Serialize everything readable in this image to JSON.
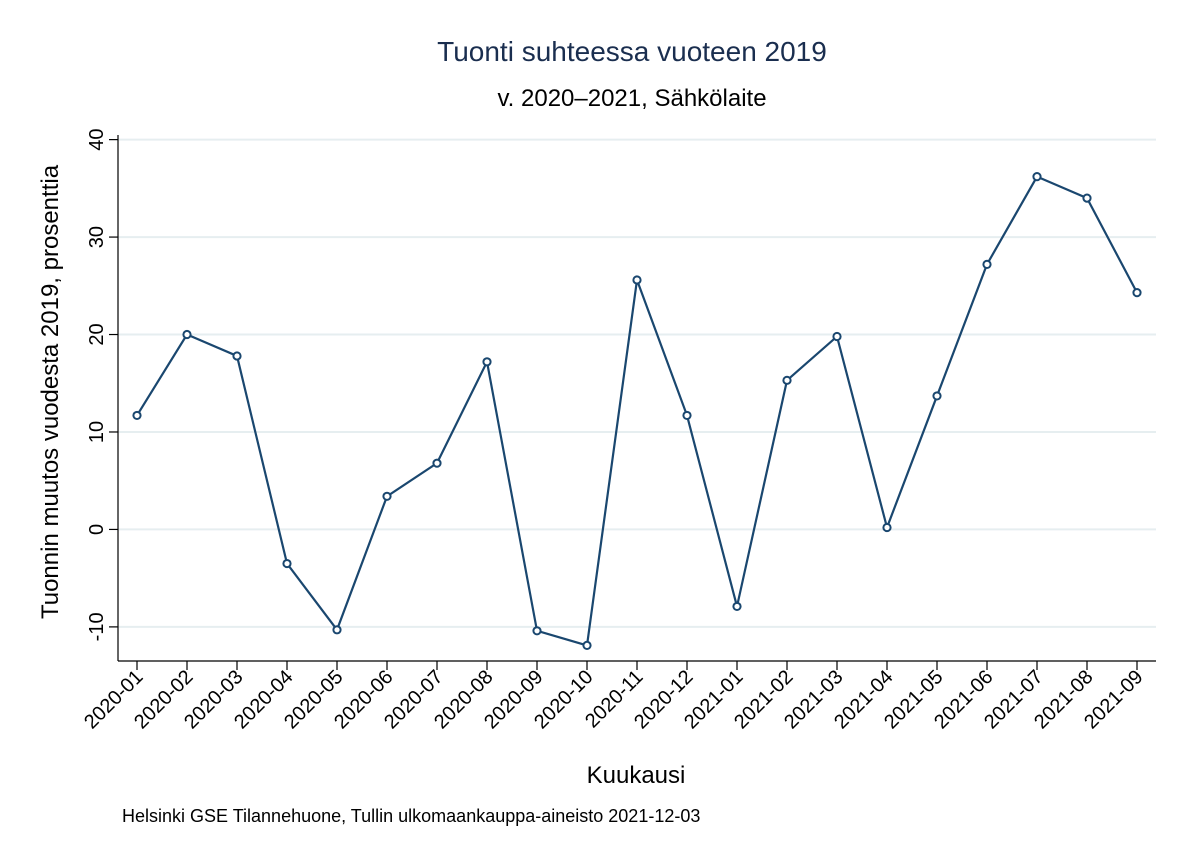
{
  "chart_data": {
    "type": "line",
    "title": "Tuonti suhteessa vuoteen 2019",
    "subtitle": "v. 2020–2021, Sähkölaite",
    "xlabel": "Kuukausi",
    "ylabel": "Tuonnin muutos vuodesta 2019, prosenttia",
    "note": "Helsinki GSE Tilannehuone, Tullin ulkomaankauppa-aineisto 2021-12-03",
    "categories": [
      "2020-01",
      "2020-02",
      "2020-03",
      "2020-04",
      "2020-05",
      "2020-06",
      "2020-07",
      "2020-08",
      "2020-09",
      "2020-10",
      "2020-11",
      "2020-12",
      "2021-01",
      "2021-02",
      "2021-03",
      "2021-04",
      "2021-05",
      "2021-06",
      "2021-07",
      "2021-08",
      "2021-09"
    ],
    "series": [
      {
        "values": [
          11.7,
          20.0,
          17.8,
          -3.5,
          -10.3,
          3.4,
          6.8,
          17.2,
          -10.4,
          -11.9,
          25.6,
          11.7,
          -7.9,
          15.3,
          19.8,
          0.2,
          13.7,
          27.2,
          36.2,
          34.0,
          24.3
        ]
      }
    ],
    "yticks": [
      -10,
      0,
      10,
      20,
      30,
      40
    ],
    "ylim": [
      -13.5,
      41.5
    ],
    "grid": true,
    "colors": {
      "line": "#1a476f",
      "grid": "#e6eef0",
      "title": "#1a2e4f"
    }
  }
}
